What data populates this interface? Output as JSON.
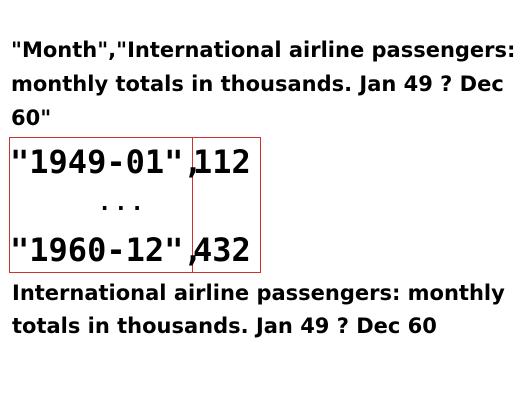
{
  "header_text": "\"Month\",\"International airline passengers: monthly totals in thousands. Jan 49 ? Dec 60\"",
  "table": {
    "first_row": {
      "month": "\"1949-01\",",
      "value": "112"
    },
    "ellipsis": "...",
    "last_row": {
      "month": "\"1960-12\",",
      "value": "432"
    },
    "border_color": "#d32f2f"
  },
  "caption": "International airline passengers: monthly totals in thousands. Jan 49 ? Dec 60"
}
